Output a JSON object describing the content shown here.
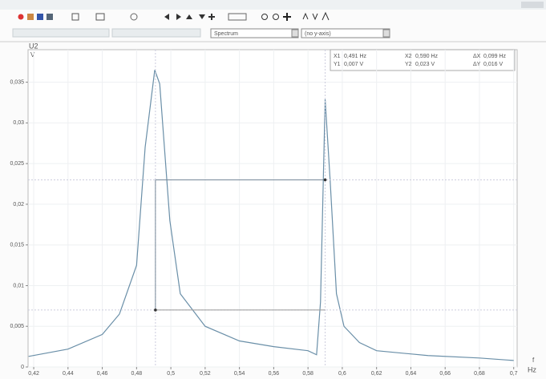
{
  "toolbar": {
    "dropdown1": "Spectrum",
    "dropdown2": "(no y-axis)"
  },
  "chart_data": {
    "type": "line",
    "y_label": "U2",
    "y_unit": "V",
    "x_label": "f",
    "x_unit": "Hz",
    "x": [
      0.417,
      0.44,
      0.46,
      0.47,
      0.48,
      0.485,
      0.4906,
      0.4935,
      0.4994,
      0.5055,
      0.52,
      0.54,
      0.56,
      0.58,
      0.585,
      0.5873,
      0.59,
      0.5929,
      0.5966,
      0.601,
      0.61,
      0.62,
      0.65,
      0.68,
      0.7
    ],
    "values": [
      0.0013,
      0.0022,
      0.004,
      0.0065,
      0.0125,
      0.027,
      0.0365,
      0.0348,
      0.018,
      0.009,
      0.005,
      0.0032,
      0.0025,
      0.002,
      0.0015,
      0.008,
      0.0329,
      0.023,
      0.009,
      0.005,
      0.003,
      0.002,
      0.0014,
      0.0011,
      0.0008
    ],
    "color": "#6a8fa8",
    "xlim": [
      0.4167,
      0.702
    ],
    "ylim": [
      0,
      0.039
    ],
    "xticks": [
      {
        "value": 0.42,
        "label": "0,42"
      },
      {
        "value": 0.44,
        "label": "0,44"
      },
      {
        "value": 0.46,
        "label": "0,46"
      },
      {
        "value": 0.48,
        "label": "0,48"
      },
      {
        "value": 0.5,
        "label": "0,5"
      },
      {
        "value": 0.52,
        "label": "0,52"
      },
      {
        "value": 0.54,
        "label": "0,54"
      },
      {
        "value": 0.56,
        "label": "0,56"
      },
      {
        "value": 0.58,
        "label": "0,58"
      },
      {
        "value": 0.6,
        "label": "0,6"
      },
      {
        "value": 0.62,
        "label": "0,62"
      },
      {
        "value": 0.64,
        "label": "0,64"
      },
      {
        "value": 0.66,
        "label": "0,66"
      },
      {
        "value": 0.68,
        "label": "0,68"
      },
      {
        "value": 0.7,
        "label": "0,7"
      }
    ],
    "yticks": [
      0,
      {
        "value": 0.005,
        "label": "0,005"
      },
      {
        "value": 0.01,
        "label": "0,01"
      },
      {
        "value": 0.015,
        "label": "0,015"
      },
      {
        "value": 0.02,
        "label": "0,02"
      },
      {
        "value": 0.025,
        "label": "0,025"
      },
      {
        "value": 0.03,
        "label": "0,03"
      },
      {
        "value": 0.035,
        "label": "0,035"
      }
    ],
    "grid": true,
    "cursors": {
      "X1": {
        "value": 0.491,
        "label": "0,491 Hz"
      },
      "X2": {
        "value": 0.59,
        "label": "0,590 Hz"
      },
      "dX": {
        "value": 0.099,
        "label": "0,099 Hz"
      },
      "Y1": {
        "value": 0.007,
        "label": "0,007 V"
      },
      "Y2": {
        "value": 0.023,
        "label": "0,023 V"
      },
      "dY": {
        "value": 0.016,
        "label": "0,016 V"
      }
    },
    "cursor_names": {
      "X1": "X1",
      "X2": "X2",
      "dX": "ΔX",
      "Y1": "Y1",
      "Y2": "Y2",
      "dY": "ΔY"
    }
  }
}
